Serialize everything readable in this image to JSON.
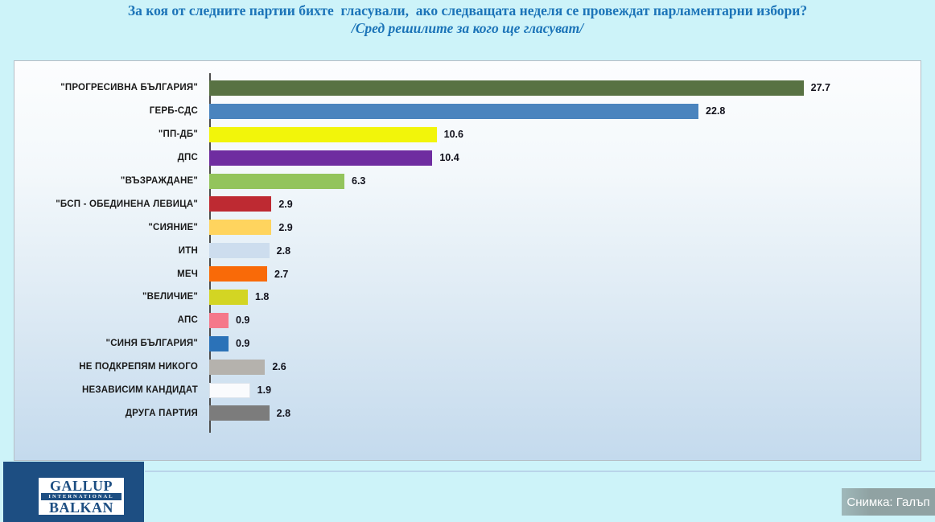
{
  "header": {
    "title": "За коя от следните партии бихте  гласували,  ако следващата неделя се провеждат парламентарни избори?",
    "subtitle": "/Сред решилите за кого ще гласуват/"
  },
  "chart_data": {
    "type": "bar",
    "orientation": "horizontal",
    "title": "За коя от следните партии бихте гласували, ако следващата неделя се провеждат парламентарни избори?",
    "subtitle": "/Сред решилите за кого ще гласуват/",
    "xlim": [
      0,
      33
    ],
    "grid": false,
    "legend": "none",
    "value_labels": "outside-end",
    "categories": [
      "\"ПРОГРЕСИВНА БЪЛГАРИЯ\"",
      "ГЕРБ-СДС",
      "\"ПП-ДБ\"",
      "ДПС",
      "\"ВЪЗРАЖДАНЕ\"",
      "\"БСП - ОБЕДИНЕНА ЛЕВИЦА\"",
      "\"СИЯНИЕ\"",
      "ИТН",
      "МЕЧ",
      "\"ВЕЛИЧИЕ\"",
      "АПС",
      "\"СИНЯ БЪЛГАРИЯ\"",
      "НЕ ПОДКРЕПЯМ НИКОГО",
      "НЕЗАВИСИМ КАНДИДАТ",
      "ДРУГА ПАРТИЯ"
    ],
    "values": [
      27.7,
      22.8,
      10.6,
      10.4,
      6.3,
      2.9,
      2.9,
      2.8,
      2.7,
      1.8,
      0.9,
      0.9,
      2.6,
      1.9,
      2.8
    ],
    "colors": [
      "#587243",
      "#4A84BE",
      "#F2F50A",
      "#6F2DA0",
      "#93C45C",
      "#BE2A32",
      "#FFD45E",
      "#CDDDEE",
      "#F96A08",
      "#D3D523",
      "#F5788A",
      "#2B72B8",
      "#B5B2AD",
      "#FAFBFD",
      "#7C7C7C"
    ]
  },
  "palette": {
    "page_background": "#cdf3f9",
    "title_text": "#1c74b8",
    "panel_border": "#b6bec6",
    "axis_line": "#4d4d4d",
    "logo_navy": "#1d4e82",
    "caption_text": "#ffffff"
  },
  "footer": {
    "logo_line1": "GALLUP",
    "logo_line2": "INTERNATIONAL",
    "logo_line3": "BALKAN",
    "caption": "Снимка: Галъп"
  }
}
